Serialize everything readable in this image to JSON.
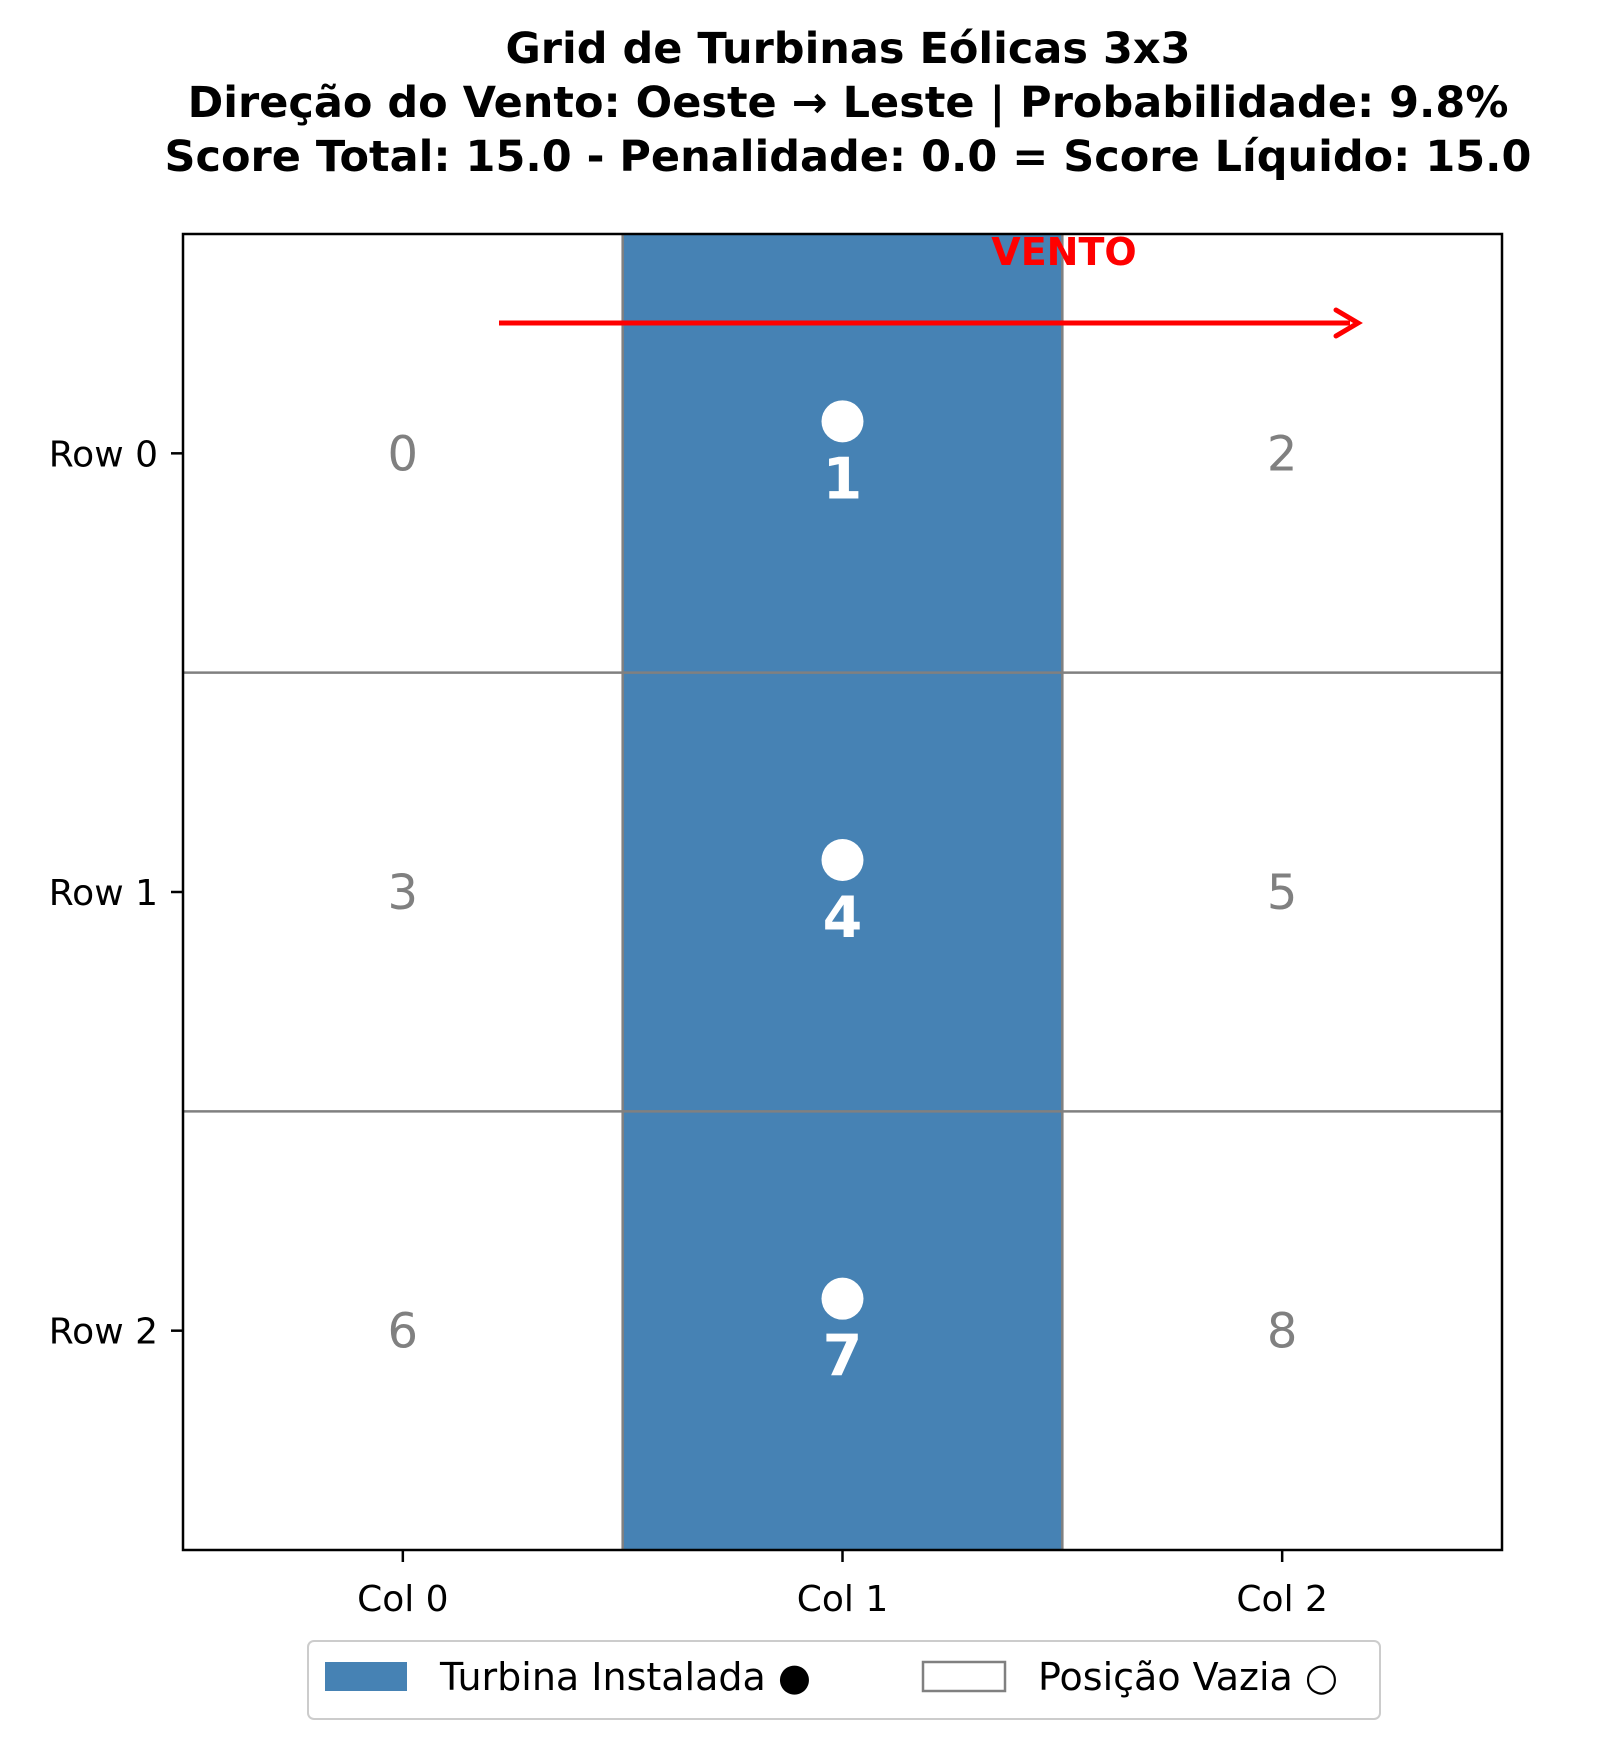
{
  "chart_data": {
    "type": "heatmap",
    "title_lines": [
      "Grid de Turbinas Eólicas 3x3",
      "Direção do Vento: Oeste → Leste | Probabilidade: 9.8%",
      "Score Total: 15.0 - Penalidade: 0.0 = Score Líquido: 15.0"
    ],
    "rows": 3,
    "cols": 3,
    "row_labels": [
      "Row 0",
      "Row 1",
      "Row 2"
    ],
    "col_labels": [
      "Col 0",
      "Col 1",
      "Col 2"
    ],
    "cell_ids": [
      [
        0,
        1,
        2
      ],
      [
        3,
        4,
        5
      ],
      [
        6,
        7,
        8
      ]
    ],
    "cells": [
      [
        0,
        1,
        0
      ],
      [
        0,
        1,
        0
      ],
      [
        0,
        1,
        0
      ]
    ],
    "wind": {
      "label": "VENTO",
      "direction": "west-to-east",
      "color": "#ff0000"
    },
    "colors": {
      "turbine": "#4682b4",
      "empty": "#ffffff",
      "grid_line": "#808080",
      "empty_label": "#808080",
      "turbine_label": "#ffffff",
      "marker": "#ffffff"
    },
    "legend": {
      "placement": "bottom-center",
      "items": [
        {
          "label": "Turbina Instalada ●",
          "style": "filled",
          "color": "#4682b4"
        },
        {
          "label": "Posição Vazia ○",
          "style": "outline",
          "color": "#808080"
        }
      ]
    }
  }
}
